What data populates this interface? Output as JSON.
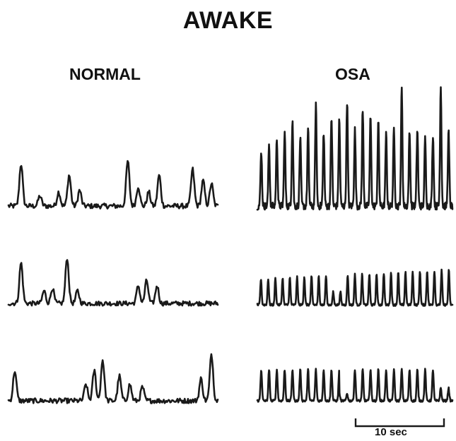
{
  "title": "AWAKE",
  "columns": {
    "normal": "NORMAL",
    "osa": "OSA"
  },
  "scale_bar": {
    "label": "10 sec"
  },
  "traces": [
    {
      "name": "normal-trace-1",
      "peaks": [
        0.06,
        0.15,
        0.24,
        0.29,
        0.34,
        0.57,
        0.62,
        0.67,
        0.72,
        0.88,
        0.93,
        0.97
      ],
      "amps": [
        0.75,
        0.18,
        0.25,
        0.55,
        0.28,
        0.8,
        0.35,
        0.25,
        0.55,
        0.65,
        0.45,
        0.4
      ]
    },
    {
      "name": "normal-trace-2",
      "peaks": [
        0.06,
        0.17,
        0.21,
        0.28,
        0.33,
        0.62,
        0.66,
        0.71
      ],
      "amps": [
        0.8,
        0.25,
        0.3,
        0.9,
        0.25,
        0.35,
        0.45,
        0.35
      ]
    },
    {
      "name": "normal-trace-3",
      "peaks": [
        0.03,
        0.37,
        0.41,
        0.45,
        0.53,
        0.58,
        0.64,
        0.92,
        0.97
      ],
      "amps": [
        0.55,
        0.3,
        0.55,
        0.75,
        0.45,
        0.3,
        0.25,
        0.4,
        0.85
      ]
    },
    {
      "name": "osa-trace-1",
      "peaks": [],
      "amps": []
    },
    {
      "name": "osa-trace-2",
      "peaks": [],
      "amps": []
    },
    {
      "name": "osa-trace-3",
      "peaks": [],
      "amps": []
    }
  ]
}
